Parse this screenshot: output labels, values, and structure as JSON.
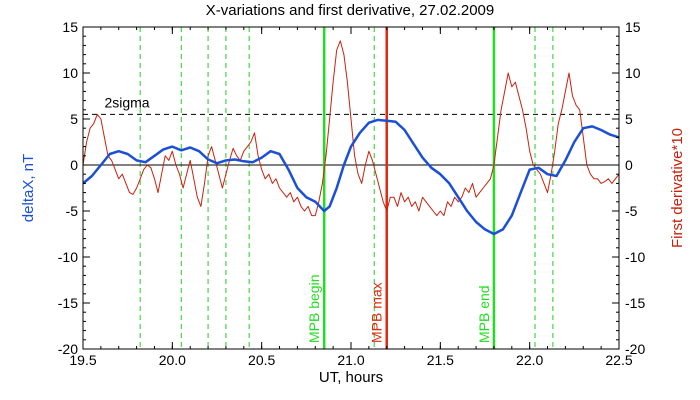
{
  "chart_data": {
    "type": "line",
    "title": "X-variations and first derivative, 27.02.2009",
    "xlabel": "UT, hours",
    "ylabel_left": "deltaX, nT",
    "ylabel_right": "First derivative*10",
    "xlim": [
      19.5,
      22.5
    ],
    "ylim": [
      -20,
      15
    ],
    "x_ticks": [
      19.5,
      20.0,
      20.5,
      21.0,
      21.5,
      22.0,
      22.5
    ],
    "x_tick_labels": [
      "19.5",
      "20.0",
      "20.5",
      "21.0",
      "21.5",
      "22.0",
      "22.5"
    ],
    "y_ticks": [
      15,
      10,
      5,
      0,
      -5,
      -10,
      -15,
      -20
    ],
    "y_tick_labels": [
      "15",
      "10",
      "5",
      "0",
      "-5",
      "-10",
      "-15",
      "-20"
    ],
    "sigma_level": 5.5,
    "sigma_label": "2sigma",
    "zero_line": 0,
    "dashed_verticals": [
      19.82,
      20.05,
      20.2,
      20.3,
      20.43,
      21.13,
      22.03,
      22.13
    ],
    "markers": [
      {
        "label": "MPB begin",
        "x": 20.85,
        "color": "#22dd22"
      },
      {
        "label": "MPB max",
        "x": 21.2,
        "color": "#dd2a10"
      },
      {
        "label": "MPB end",
        "x": 21.8,
        "color": "#22dd22"
      }
    ],
    "series": [
      {
        "color": "#1a4fd6",
        "x": [
          19.5,
          19.55,
          19.6,
          19.65,
          19.7,
          19.75,
          19.8,
          19.85,
          19.9,
          19.95,
          20.0,
          20.05,
          20.1,
          20.15,
          20.2,
          20.25,
          20.3,
          20.35,
          20.4,
          20.45,
          20.5,
          20.55,
          20.6,
          20.65,
          20.7,
          20.75,
          20.8,
          20.85,
          20.88,
          20.92,
          20.96,
          21.0,
          21.05,
          21.1,
          21.15,
          21.2,
          21.25,
          21.3,
          21.35,
          21.4,
          21.45,
          21.5,
          21.55,
          21.6,
          21.65,
          21.7,
          21.75,
          21.8,
          21.85,
          21.9,
          21.95,
          22.0,
          22.05,
          22.1,
          22.15,
          22.2,
          22.25,
          22.3,
          22.35,
          22.4,
          22.45,
          22.5
        ],
        "y": [
          -2,
          -1.2,
          0,
          1.2,
          1.5,
          1.2,
          0.5,
          0.3,
          1,
          1.7,
          2,
          1.6,
          1.9,
          1.5,
          0.6,
          0.2,
          0.5,
          0.6,
          0.4,
          0.3,
          0.8,
          1.5,
          1.2,
          -0.5,
          -2.5,
          -3.5,
          -4,
          -5,
          -4.5,
          -2.5,
          0,
          2,
          3.5,
          4.6,
          4.9,
          4.8,
          4.7,
          3.8,
          2.3,
          0.8,
          -0.3,
          -1,
          -2,
          -3.5,
          -5,
          -6.2,
          -7,
          -7.5,
          -7,
          -5.5,
          -3,
          -0.5,
          -0.3,
          -1,
          -1.2,
          0.5,
          2.5,
          4,
          4.2,
          3.8,
          3.3,
          3
        ]
      },
      {
        "color": "#c8220e",
        "x": [
          19.5,
          19.52,
          19.54,
          19.56,
          19.58,
          19.6,
          19.62,
          19.64,
          19.66,
          19.68,
          19.7,
          19.72,
          19.74,
          19.76,
          19.78,
          19.8,
          19.82,
          19.84,
          19.86,
          19.88,
          19.9,
          19.92,
          19.94,
          19.96,
          19.98,
          20.0,
          20.02,
          20.04,
          20.06,
          20.08,
          20.1,
          20.12,
          20.14,
          20.16,
          20.18,
          20.2,
          20.22,
          20.24,
          20.26,
          20.28,
          20.3,
          20.32,
          20.34,
          20.36,
          20.38,
          20.4,
          20.42,
          20.44,
          20.46,
          20.48,
          20.5,
          20.52,
          20.54,
          20.56,
          20.58,
          20.6,
          20.62,
          20.64,
          20.66,
          20.68,
          20.7,
          20.72,
          20.74,
          20.76,
          20.78,
          20.8,
          20.82,
          20.84,
          20.86,
          20.88,
          20.9,
          20.92,
          20.94,
          20.96,
          20.98,
          21.0,
          21.02,
          21.04,
          21.06,
          21.08,
          21.1,
          21.12,
          21.14,
          21.16,
          21.18,
          21.2,
          21.22,
          21.24,
          21.26,
          21.28,
          21.3,
          21.32,
          21.34,
          21.36,
          21.38,
          21.4,
          21.42,
          21.44,
          21.46,
          21.48,
          21.5,
          21.52,
          21.54,
          21.56,
          21.58,
          21.6,
          21.62,
          21.64,
          21.66,
          21.68,
          21.7,
          21.72,
          21.74,
          21.76,
          21.78,
          21.8,
          21.82,
          21.84,
          21.86,
          21.88,
          21.9,
          21.92,
          21.94,
          21.96,
          21.98,
          22.0,
          22.02,
          22.04,
          22.06,
          22.08,
          22.1,
          22.12,
          22.14,
          22.16,
          22.18,
          22.2,
          22.22,
          22.24,
          22.26,
          22.28,
          22.3,
          22.32,
          22.34,
          22.36,
          22.38,
          22.4,
          22.42,
          22.44,
          22.46,
          22.48,
          22.5
        ],
        "y": [
          0,
          2.5,
          4,
          4.5,
          5.5,
          5,
          3,
          1,
          0.5,
          -0.5,
          -1.5,
          -1,
          -2,
          -3,
          -3.2,
          -2.5,
          -1.5,
          -0.5,
          0,
          -0.3,
          -1.5,
          -3,
          -1,
          1,
          0.5,
          1.5,
          0,
          -1,
          -2.5,
          -1,
          0.5,
          -1.5,
          -3.5,
          -4.5,
          -2,
          1,
          2,
          0.5,
          -1,
          -2.5,
          -1,
          0.5,
          1.8,
          1,
          0.5,
          1.5,
          2,
          2.5,
          3.5,
          1,
          -0.5,
          -1.5,
          -1,
          -2,
          -1.5,
          -2.5,
          -3,
          -3.5,
          -3,
          -4,
          -3.5,
          -4.5,
          -5,
          -4.5,
          -5.5,
          -5.5,
          -4,
          -2,
          1,
          5,
          9,
          12.5,
          13.5,
          12,
          9,
          5,
          1,
          -1,
          -2,
          0,
          1.5,
          0.5,
          -1,
          -2.5,
          -4,
          -5,
          -3.5,
          -3.5,
          -4.5,
          -3,
          -4,
          -3.5,
          -4.5,
          -4,
          -5,
          -3.5,
          -4,
          -4.5,
          -5,
          -5.5,
          -5,
          -5.5,
          -4,
          -4.5,
          -3.5,
          -4,
          -3.5,
          -2.5,
          -3,
          -2,
          -3.5,
          -3,
          -2.5,
          -2,
          -1.5,
          0,
          3,
          6,
          8,
          10,
          8.5,
          9,
          7.5,
          6,
          4,
          1.5,
          0,
          -0.5,
          -1,
          -2,
          -3,
          -1,
          1.5,
          4.5,
          6,
          8,
          10,
          7.5,
          6.5,
          6,
          3,
          0,
          -1,
          -1.5,
          -1.5,
          -2,
          -1.8,
          -1.5,
          -2,
          -1.5,
          -1
        ]
      }
    ]
  }
}
